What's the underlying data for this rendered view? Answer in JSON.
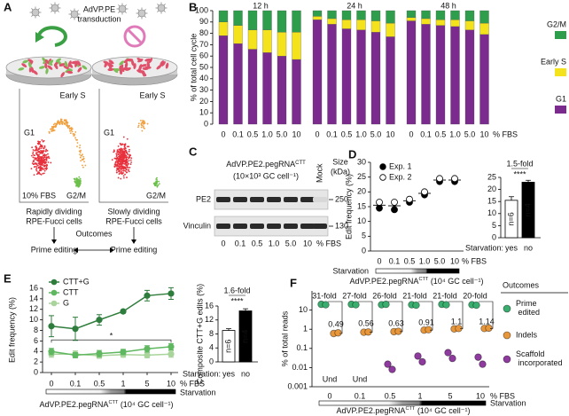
{
  "figure": {
    "A": {
      "label": "A",
      "transduction": [
        "AdVP.PE",
        "transduction"
      ],
      "plots": [
        {
          "title": "Early S",
          "g1": "G1",
          "g2m": "G2/M",
          "fbs": "10% FBS",
          "caption": [
            "Rapidly dividing",
            "RPE-Fucci cells"
          ]
        },
        {
          "title": "Early S",
          "g1": "G1",
          "g2m": "G2/M",
          "caption": [
            "Slowly dividing",
            "RPE-Fucci cells"
          ]
        }
      ],
      "outcomes": "Outcomes",
      "results": [
        "Prime editing",
        "Prime editing"
      ]
    },
    "C": {
      "label": "C",
      "vector": {
        "text": "AdVP.PE2.pegRNA",
        "sup": "CTT"
      },
      "dose": "(10×10³ GC cell⁻¹)",
      "mock": "Mock",
      "size_label": [
        "Size",
        "(kDa)"
      ],
      "rows": [
        {
          "name": "PE2",
          "size": "250"
        },
        {
          "name": "Vinculin",
          "size": "130"
        }
      ],
      "lanes": [
        "0",
        "0.1",
        "0.5",
        "1.0",
        "5.0",
        "10"
      ],
      "unit": "% FBS"
    }
  },
  "chart_data": [
    {
      "label": "B",
      "type": "stacked_bar",
      "ylabel": "% of total cell cycle",
      "xlabel": "% FBS",
      "ylim": [
        0,
        100
      ],
      "yticks": [
        0,
        10,
        20,
        30,
        40,
        50,
        60,
        70,
        80,
        90,
        100
      ],
      "categories": [
        "0",
        "0.1",
        "0.5",
        "1.0",
        "5.0",
        "10"
      ],
      "series": [
        {
          "name": "G1",
          "color": "#7b2a8e"
        },
        {
          "name": "Early S",
          "color": "#f4e21c"
        },
        {
          "name": "G2/M",
          "color": "#2f9e4c"
        }
      ],
      "panels": [
        {
          "title": "12 h",
          "values": [
            [
              78,
              71,
              66,
              63,
              60,
              57
            ],
            [
              12,
              16,
              17,
              20,
              21,
              24
            ],
            [
              10,
              13,
              17,
              17,
              19,
              19
            ]
          ]
        },
        {
          "title": "24 h",
          "values": [
            [
              92,
              88,
              84,
              83,
              81,
              77
            ],
            [
              3,
              5,
              8,
              9,
              10,
              12
            ],
            [
              5,
              7,
              8,
              8,
              9,
              11
            ]
          ]
        },
        {
          "title": "48 h",
          "values": [
            [
              91,
              88,
              87,
              86,
              83,
              79
            ],
            [
              3,
              5,
              5,
              6,
              8,
              10
            ],
            [
              6,
              7,
              8,
              8,
              9,
              11
            ]
          ]
        }
      ]
    },
    {
      "label": "D",
      "type": "scatter",
      "ylabel": "Edit frequency (%)",
      "xlabel": "% FBS",
      "ylim": [
        0,
        30
      ],
      "yticks": [
        0,
        5,
        10,
        15,
        20,
        25,
        30
      ],
      "categories": [
        "0",
        "0.1",
        "0.5",
        "1.0",
        "5.0",
        "10"
      ],
      "series": [
        {
          "name": "Exp. 1",
          "color": "#000000",
          "values": [
            14.5,
            14,
            16.5,
            19,
            23.5,
            23.5
          ]
        },
        {
          "name": "Exp. 2",
          "color": "#ffffff",
          "values": [
            16.5,
            16.5,
            17.5,
            20,
            24.5,
            24.5
          ]
        }
      ],
      "mean_values": [
        15.5,
        15.3,
        17,
        19.5,
        24,
        24
      ],
      "legend": "upper left",
      "starvation_label": "Starvation",
      "caption": {
        "text": "AdVP.PE2.pegRNA",
        "sup": "CTT",
        "suffix": " (10⁴ GC cell⁻¹)"
      }
    },
    {
      "type": "bar",
      "annotation": "1.5-fold",
      "significance": "****",
      "group_label": "Starvation:",
      "categories": [
        "yes",
        "no"
      ],
      "values": [
        15.5,
        23
      ],
      "errors": [
        1.5,
        0.8
      ],
      "n_labels": [
        "n=6",
        "n=4"
      ],
      "colors": [
        "#ffffff",
        "#000000"
      ],
      "ylim": [
        0,
        25
      ],
      "yticks": [
        0,
        5,
        10,
        15,
        20,
        25
      ]
    },
    {
      "label": "E",
      "type": "line",
      "ylabel": "Edit frequency (%)",
      "xlabel": "% FBS",
      "ylim": [
        0,
        16
      ],
      "yticks": [
        0,
        2,
        4,
        6,
        8,
        10,
        12,
        14,
        16
      ],
      "categories": [
        "0",
        "0.1",
        "0.5",
        "1",
        "5",
        "10"
      ],
      "series": [
        {
          "name": "CTT+G",
          "color": "#2f7d3c",
          "values": [
            8.8,
            8.3,
            10,
            11.6,
            14.6,
            15
          ],
          "errors": [
            2,
            2.2,
            1,
            0.3,
            1,
            1.1
          ]
        },
        {
          "name": "CTT",
          "color": "#5fb760",
          "values": [
            4,
            3.3,
            3.6,
            3.9,
            4.5,
            4.9
          ],
          "errors": [
            0.6,
            0.5,
            0.6,
            0.5,
            0.6,
            0.6
          ]
        },
        {
          "name": "G",
          "color": "#a9d49b",
          "values": [
            3.5,
            3.5,
            3.2,
            3.4,
            3.3,
            3.5
          ],
          "errors": [
            0.6,
            0.6,
            0.5,
            0.5,
            0.5,
            0.6
          ]
        }
      ],
      "annotation": "*",
      "starvation_label": "Starvation",
      "caption": {
        "text": "AdVP.PE2.pegRNA",
        "sup": "CTT",
        "suffix": " (10⁴ GC cell⁻¹)"
      }
    },
    {
      "type": "bar",
      "ylabel": "Composite CTT+G edits (%)",
      "annotation": "1.6-fold",
      "significance": "****",
      "group_label": "Starvation:",
      "categories": [
        "yes",
        "no"
      ],
      "values": [
        9,
        14.6
      ],
      "errors": [
        0.5,
        0.6
      ],
      "n_labels": [
        "n=6",
        "n=4"
      ],
      "colors": [
        "#ffffff",
        "#000000"
      ],
      "ylim": [
        0,
        16
      ],
      "yticks": [
        0,
        4,
        8,
        12,
        16
      ]
    },
    {
      "label": "F",
      "type": "scatter",
      "log_scale": true,
      "ylabel": "% of total reads",
      "xlabel": "% FBS",
      "ylim": [
        0.001,
        100
      ],
      "yticks": [
        0.001,
        0.01,
        0.1,
        1,
        10
      ],
      "categories": [
        "0",
        "0.1",
        "0.5",
        "1",
        "5",
        "10"
      ],
      "series": [
        {
          "name": "Prime edited",
          "color": "#3aae6e",
          "values": [
            [
              20,
              19
            ],
            [
              20,
              19
            ],
            [
              19,
              20
            ],
            [
              19,
              18
            ],
            [
              20,
              19
            ],
            [
              19,
              18
            ]
          ]
        },
        {
          "name": "Indels",
          "color": "#e8963a",
          "values": [
            [
              0.6,
              0.65
            ],
            [
              0.7,
              0.72
            ],
            [
              0.75,
              0.78
            ],
            [
              0.9,
              0.95
            ],
            [
              1.05,
              1.1
            ],
            [
              1.1,
              1.15
            ]
          ]
        },
        {
          "name": "Scaffold incorporated",
          "color": "#8e3a9e",
          "values": [
            null,
            null,
            [
              0.015,
              0.008
            ],
            [
              0.04,
              0.02
            ],
            [
              0.06,
              0.03
            ],
            [
              0.035,
              0.015
            ]
          ]
        }
      ],
      "missing_label": "Und",
      "fold_labels": [
        "31-fold",
        "27-fold",
        "26-fold",
        "21-fold",
        "21-fold",
        "20-fold"
      ],
      "ratios": [
        0.49,
        0.56,
        0.63,
        0.91,
        1.1,
        1.14
      ],
      "legend_title": "Outcomes",
      "legend": "right",
      "starvation_label": "Starvation",
      "caption": {
        "text": "AdVP.PE2.pegRNA",
        "sup": "CTT",
        "suffix": " (10⁴ GC cell⁻¹)"
      }
    }
  ]
}
